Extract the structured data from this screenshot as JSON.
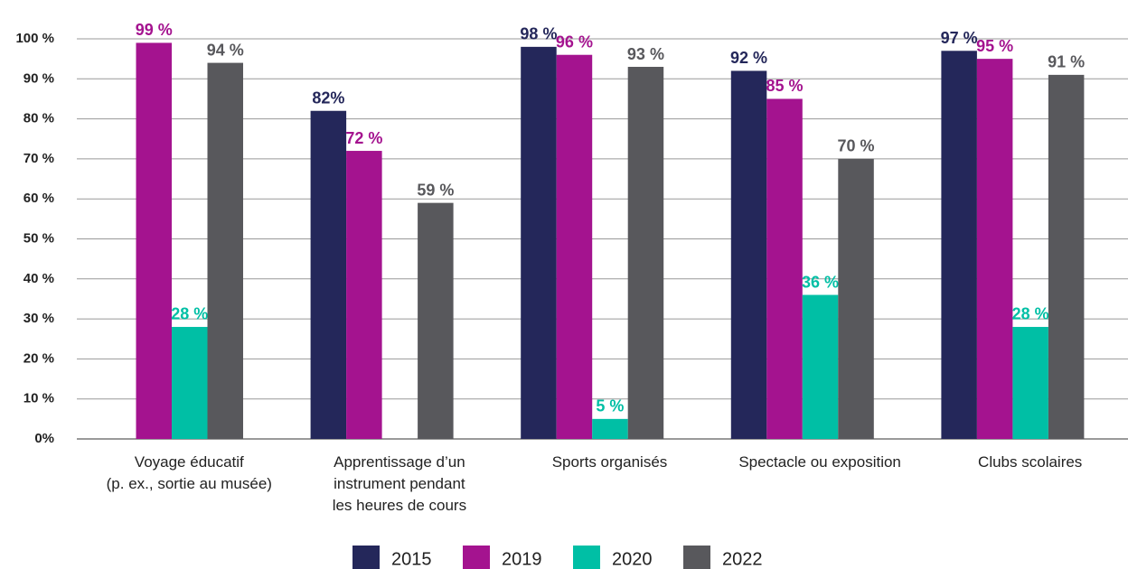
{
  "chart_data": {
    "type": "bar",
    "categories": [
      "Voyage éducatif\n(p. ex., sortie au musée)",
      "Apprentissage d’un\ninstrument pendant\nles heures de cours",
      "Sports organisés",
      "Spectacle ou exposition",
      "Clubs scolaires"
    ],
    "series": [
      {
        "name": "2015",
        "color": "#24275a",
        "values": [
          null,
          82,
          98,
          92,
          97
        ],
        "value_labels": [
          null,
          "82%",
          "98 %",
          "92 %",
          "97 %"
        ]
      },
      {
        "name": "2019",
        "color": "#a4138f",
        "values": [
          99,
          72,
          96,
          85,
          95
        ],
        "value_labels": [
          "99 %",
          "72 %",
          "96 %",
          "85 %",
          "95 %"
        ]
      },
      {
        "name": "2020",
        "color": "#00bfa5",
        "values": [
          28,
          null,
          5,
          36,
          28
        ],
        "value_labels": [
          "28 %",
          null,
          "5 %",
          "36 %",
          "28 %"
        ]
      },
      {
        "name": "2022",
        "color": "#58585c",
        "values": [
          94,
          59,
          93,
          70,
          91
        ],
        "value_labels": [
          "94 %",
          "59 %",
          "93 %",
          "70 %",
          "91 %"
        ]
      }
    ],
    "ylim": [
      0,
      100
    ],
    "yticks": [
      {
        "value": 0,
        "label": "0%"
      },
      {
        "value": 10,
        "label": "10 %"
      },
      {
        "value": 20,
        "label": "20 %"
      },
      {
        "value": 30,
        "label": "30 %"
      },
      {
        "value": 40,
        "label": "40 %"
      },
      {
        "value": 50,
        "label": "50 %"
      },
      {
        "value": 60,
        "label": "60 %"
      },
      {
        "value": 70,
        "label": "70 %"
      },
      {
        "value": 80,
        "label": "80 %"
      },
      {
        "value": 90,
        "label": "90 %"
      },
      {
        "value": 100,
        "label": "100 %"
      }
    ],
    "grid": true,
    "legend": "bottom"
  }
}
